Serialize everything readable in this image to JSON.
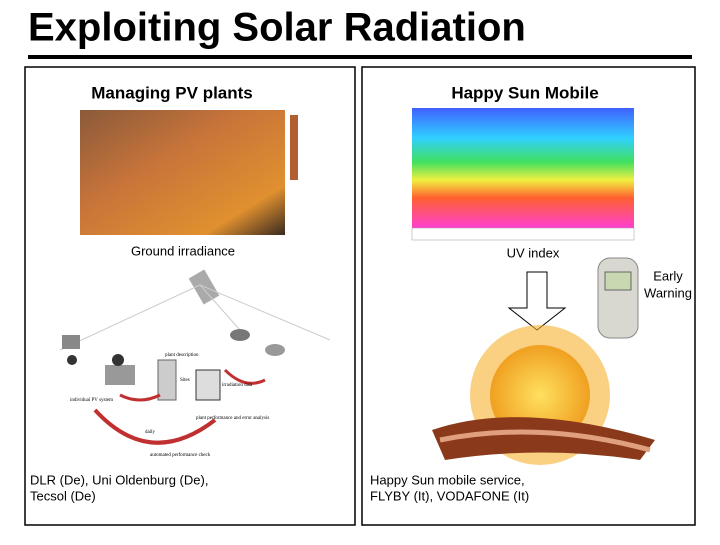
{
  "title": "Exploiting Solar Radiation",
  "left_panel": {
    "heading": "Managing PV plants",
    "image_caption": "Ground irradiance",
    "diagram_labels": [
      "plant description",
      "Sites",
      "irradiation data",
      "individual PV system",
      "daily",
      "automated performance check",
      "plant performance and error analysis"
    ],
    "footer": [
      "DLR (De), Uni Oldenburg (De),",
      "Tecsol (De)"
    ]
  },
  "right_panel": {
    "heading": "Happy Sun Mobile",
    "image_caption": "UV index",
    "phone_caption": [
      "Early",
      "Warning"
    ],
    "footer": [
      "Happy Sun mobile service,",
      "FLYBY (It), VODAFONE (It)"
    ]
  }
}
